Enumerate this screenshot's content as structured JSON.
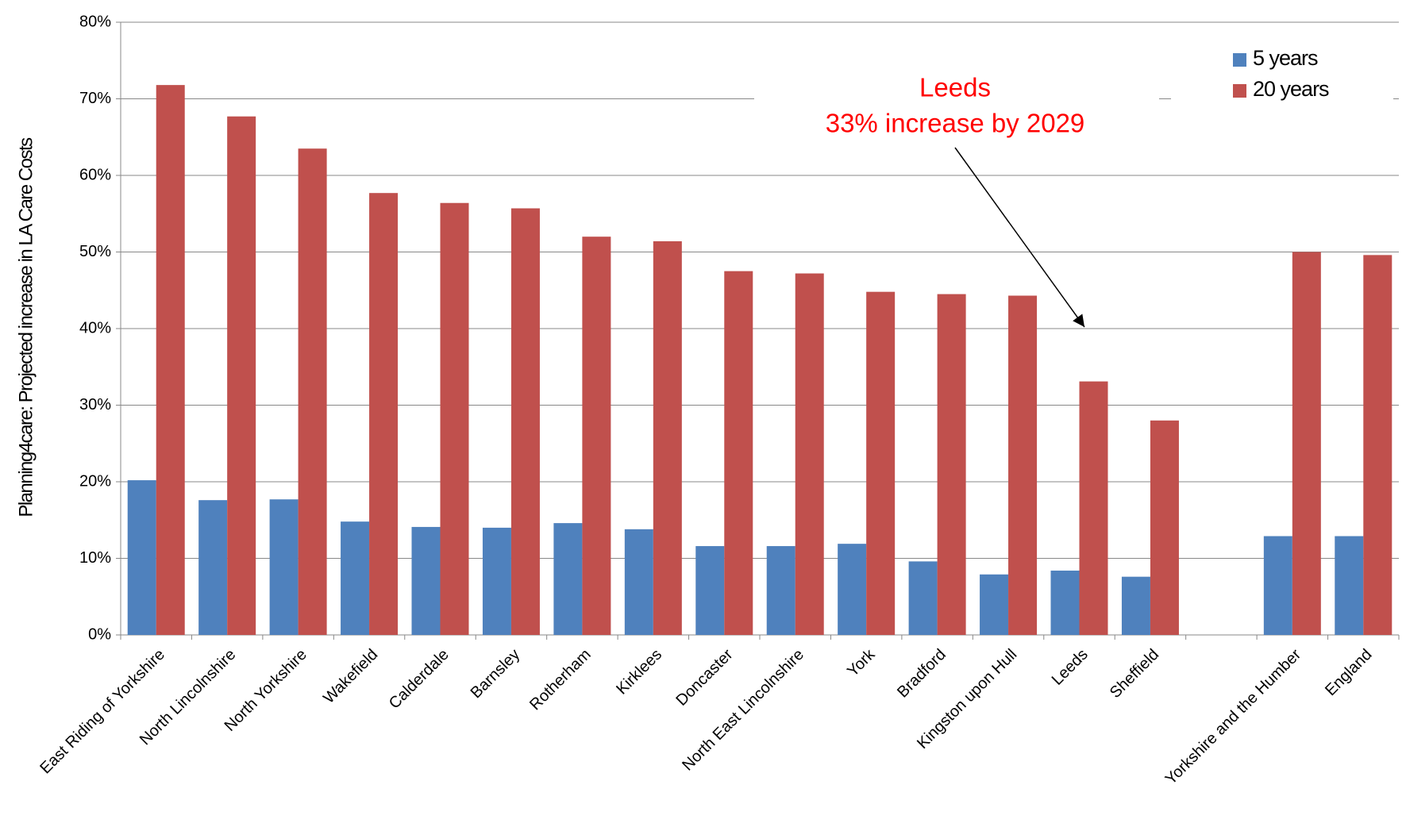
{
  "chart_data": {
    "type": "bar",
    "y_label": "Planning4care: Projected increase in LA Care Costs",
    "annotation": [
      "Leeds",
      "33% increase by 2029"
    ],
    "categories": [
      "East Riding of Yorkshire",
      "North Lincolnshire",
      "North Yorkshire",
      "Wakefield",
      "Calderdale",
      "Barnsley",
      "Rotherham",
      "Kirklees",
      "Doncaster",
      "North East Lincolnshire",
      "York",
      "Bradford",
      "Kingston upon Hull",
      "Leeds",
      "Sheffield",
      null,
      "Yorkshire and the Humber",
      "England"
    ],
    "series": [
      {
        "name": "5 years",
        "color": "#4f81bd",
        "values": [
          20.2,
          17.6,
          17.7,
          14.8,
          14.1,
          14.0,
          14.6,
          13.8,
          11.6,
          11.6,
          11.9,
          9.6,
          7.9,
          8.4,
          7.6,
          null,
          12.9,
          12.9
        ]
      },
      {
        "name": "20 years",
        "color": "#c0504d",
        "values": [
          71.8,
          67.7,
          63.5,
          57.7,
          56.4,
          55.7,
          52.0,
          51.4,
          47.5,
          47.2,
          44.8,
          44.5,
          44.3,
          33.1,
          28.0,
          null,
          50.0,
          49.6
        ]
      }
    ],
    "ylim": [
      0,
      80
    ],
    "yticks": [
      {
        "value": 0,
        "label": "0%"
      },
      {
        "value": 10,
        "label": "10%"
      },
      {
        "value": 20,
        "label": "20%"
      },
      {
        "value": 30,
        "label": "30%"
      },
      {
        "value": 40,
        "label": "40%"
      },
      {
        "value": 50,
        "label": "50%"
      },
      {
        "value": 60,
        "label": "60%"
      },
      {
        "value": 70,
        "label": "70%"
      },
      {
        "value": 80,
        "label": "80%"
      }
    ],
    "grid": true,
    "legend": "top-right"
  }
}
